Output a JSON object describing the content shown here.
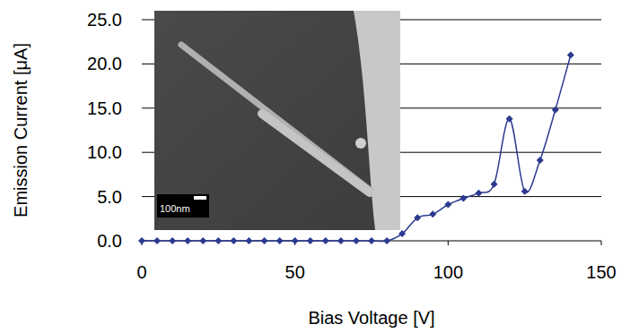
{
  "chart_data": {
    "type": "line",
    "x_label": "Bias Voltage [V]",
    "y_label": "Emission Current [μA]",
    "x": [
      0,
      5,
      10,
      15,
      20,
      25,
      30,
      35,
      40,
      45,
      50,
      55,
      60,
      65,
      70,
      75,
      80,
      85,
      90,
      95,
      100,
      105,
      110,
      115,
      120,
      125,
      130,
      135,
      140
    ],
    "values": [
      0,
      0,
      0,
      0,
      0,
      0,
      0,
      0,
      0,
      0,
      0,
      0,
      0,
      0,
      0,
      0,
      0,
      0.8,
      2.6,
      3.0,
      4.1,
      4.8,
      5.4,
      6.4,
      13.8,
      5.6,
      9.1,
      14.8,
      21.0
    ],
    "color": "#2b3990",
    "marker": "diamond",
    "line_style": "smooth",
    "xlim": [
      0,
      150
    ],
    "xticks": [
      0,
      50,
      100,
      150
    ],
    "ylim": [
      0,
      25
    ],
    "yticks": [
      {
        "value": 0,
        "label": "0.0"
      },
      {
        "value": 5,
        "label": "5.0"
      },
      {
        "value": 10,
        "label": "10.0"
      },
      {
        "value": 15,
        "label": "15.0"
      },
      {
        "value": 20,
        "label": "20.0"
      },
      {
        "value": 25,
        "label": "25.0"
      }
    ],
    "grid": true,
    "annotations": [
      "100nm"
    ]
  }
}
